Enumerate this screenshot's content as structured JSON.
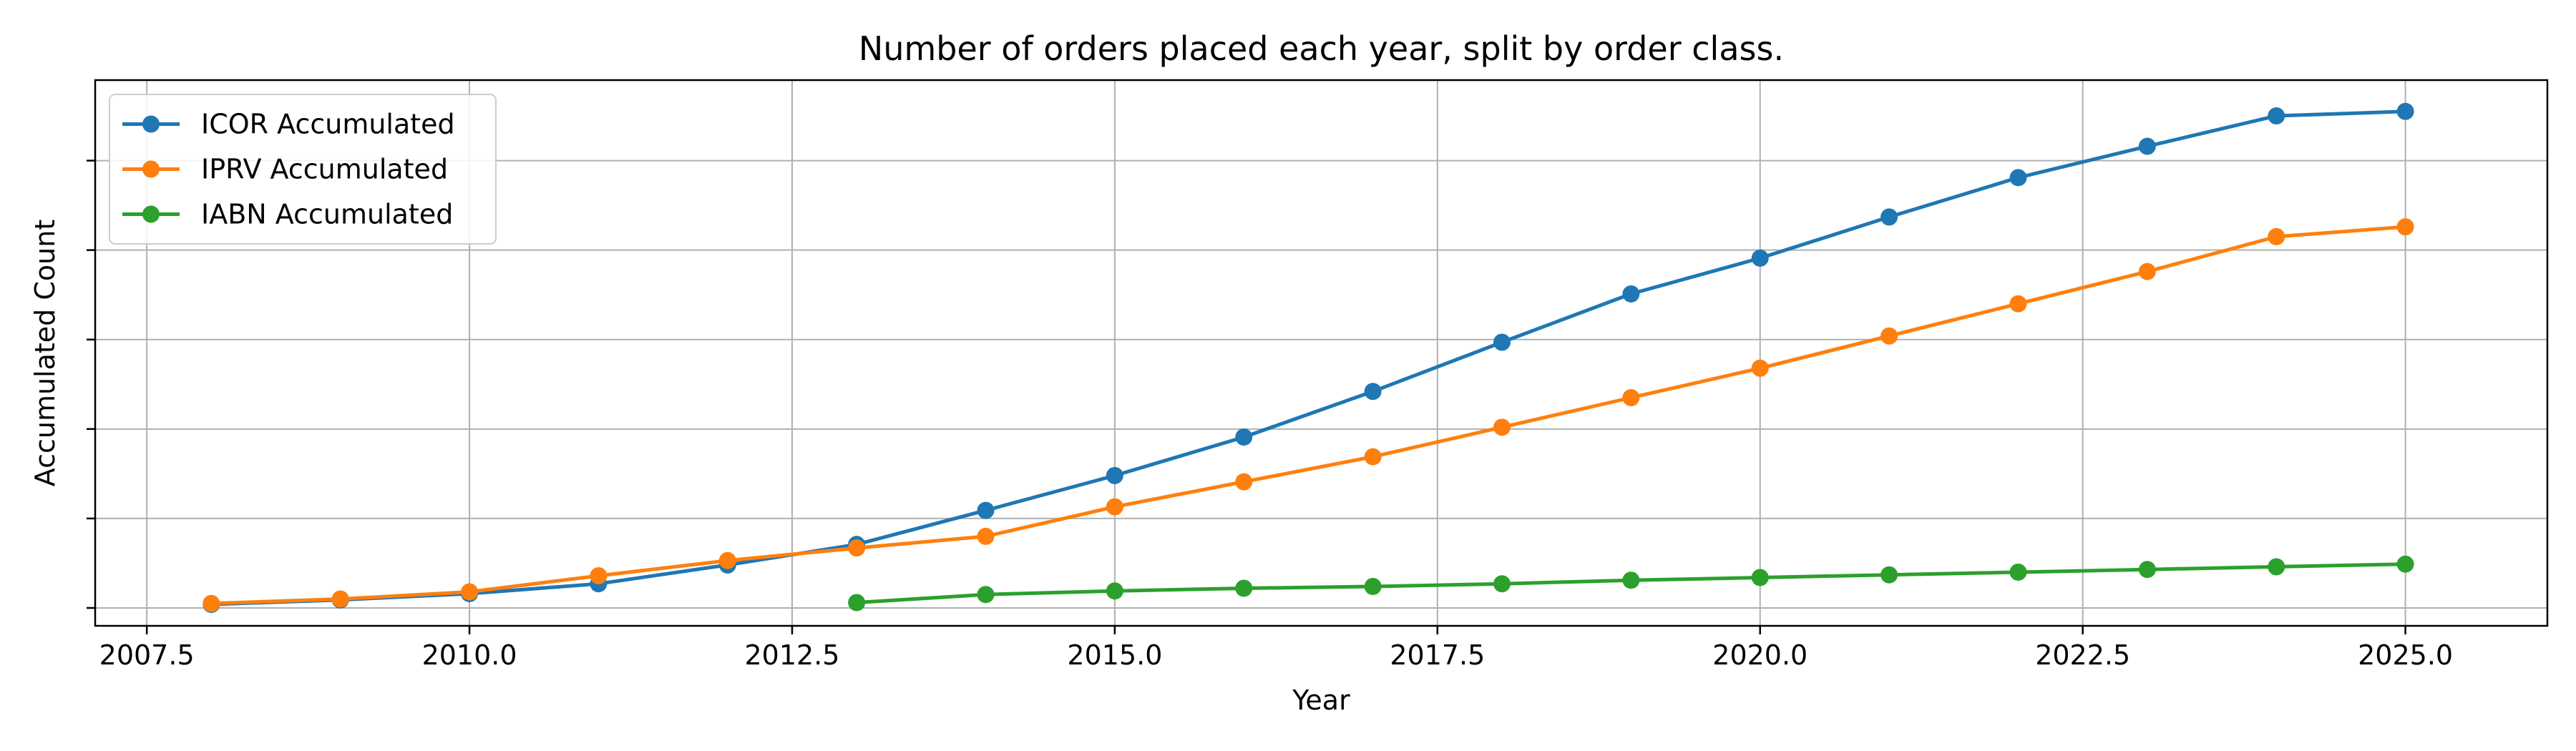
{
  "chart_data": {
    "type": "line",
    "title": "Number of orders placed each year, split by order class.",
    "xlabel": "Year",
    "ylabel": "Accumulated Count",
    "xlim": [
      2007.1,
      2026.1
    ],
    "ylim": [
      -0.2,
      5.9
    ],
    "x_ticks": [
      2007.5,
      2010.0,
      2012.5,
      2015.0,
      2017.5,
      2020.0,
      2022.5,
      2025.0
    ],
    "x_tick_labels": [
      "2007.5",
      "2010.0",
      "2012.5",
      "2015.0",
      "2017.5",
      "2020.0",
      "2022.5",
      "2025.0"
    ],
    "y_ticks": [
      0,
      1,
      2,
      3,
      4,
      5
    ],
    "y_tick_labels": [
      "",
      "",
      "",
      "",
      "",
      ""
    ],
    "grid": true,
    "legend_position": "top-left",
    "series": [
      {
        "name": "ICOR Accumulated",
        "color": "#1f77b4",
        "x": [
          2008,
          2009,
          2010,
          2011,
          2012,
          2013,
          2014,
          2015,
          2016,
          2017,
          2018,
          2019,
          2020,
          2021,
          2022,
          2023,
          2024,
          2025
        ],
        "y": [
          0.04,
          0.09,
          0.16,
          0.27,
          0.48,
          0.71,
          1.09,
          1.48,
          1.91,
          2.42,
          2.97,
          3.51,
          3.91,
          4.37,
          4.81,
          5.16,
          5.5,
          5.55
        ]
      },
      {
        "name": "IPRV Accumulated",
        "color": "#ff7f0e",
        "x": [
          2008,
          2009,
          2010,
          2011,
          2012,
          2013,
          2014,
          2015,
          2016,
          2017,
          2018,
          2019,
          2020,
          2021,
          2022,
          2023,
          2024,
          2025
        ],
        "y": [
          0.05,
          0.1,
          0.18,
          0.36,
          0.53,
          0.67,
          0.8,
          1.13,
          1.41,
          1.69,
          2.02,
          2.35,
          2.68,
          3.04,
          3.4,
          3.76,
          4.15,
          4.26
        ]
      },
      {
        "name": "IABN Accumulated",
        "color": "#2ca02c",
        "x": [
          2013,
          2014,
          2015,
          2016,
          2017,
          2018,
          2019,
          2020,
          2021,
          2022,
          2023,
          2024,
          2025
        ],
        "y": [
          0.06,
          0.15,
          0.19,
          0.22,
          0.24,
          0.27,
          0.31,
          0.34,
          0.37,
          0.4,
          0.43,
          0.46,
          0.49
        ]
      }
    ]
  }
}
